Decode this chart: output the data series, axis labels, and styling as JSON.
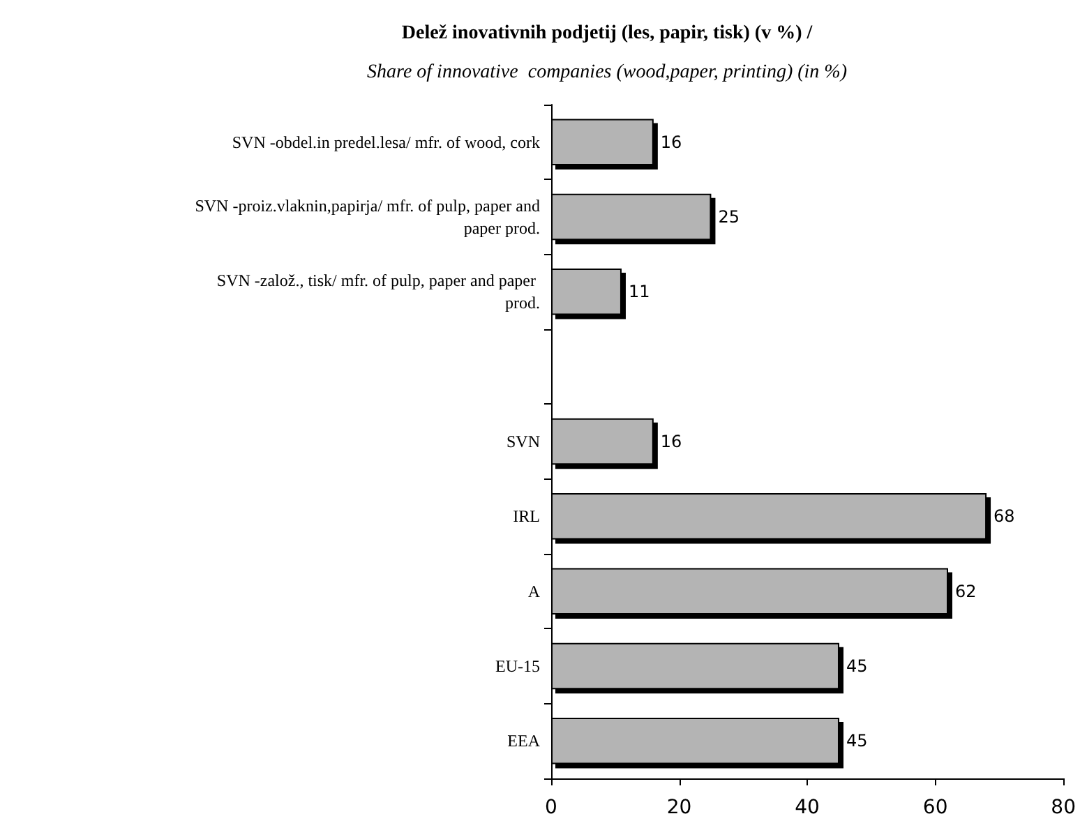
{
  "chart_data": {
    "type": "bar",
    "orientation": "horizontal",
    "title": "Delež inovativnih podjetij (les, papir, tisk) (v %) /",
    "subtitle": "Share of innovative  companies (wood,paper, printing) (in %)",
    "categories": [
      "SVN -obdel.in predel.lesa/ mfr. of wood, cork",
      "SVN -proiz.vlaknin,papirja/ mfr. of pulp, paper and paper prod.",
      "SVN -založ., tisk/ mfr. of pulp, paper and paper prod.",
      null,
      "SVN",
      "IRL",
      "A",
      "EU-15",
      "EEA"
    ],
    "values": [
      16,
      25,
      11,
      null,
      16,
      68,
      62,
      45,
      45
    ],
    "color": "#b4b4b4",
    "xlim": [
      0,
      80
    ],
    "xticks": [
      0,
      20,
      40,
      60,
      80
    ],
    "data_labels": true
  }
}
